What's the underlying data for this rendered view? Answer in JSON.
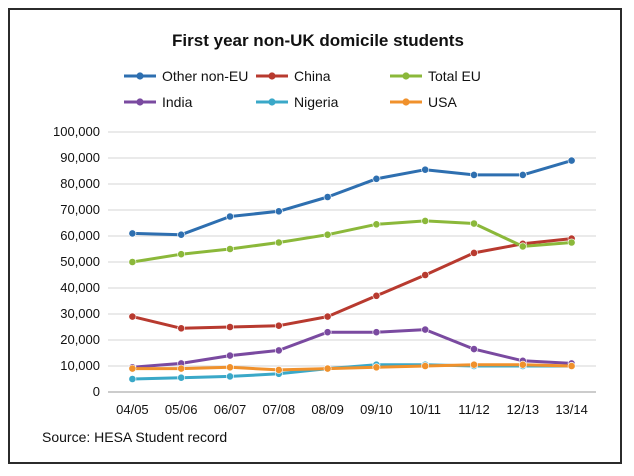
{
  "chart_data": {
    "type": "line",
    "title": "First year non-UK domicile students",
    "xlabel": "",
    "ylabel": "",
    "categories": [
      "04/05",
      "05/06",
      "06/07",
      "07/08",
      "08/09",
      "09/10",
      "10/11",
      "11/12",
      "12/13",
      "13/14"
    ],
    "ylim": [
      0,
      100000
    ],
    "yticks": [
      "0",
      "10,000",
      "20,000",
      "30,000",
      "40,000",
      "50,000",
      "60,000",
      "70,000",
      "80,000",
      "90,000",
      "100,000"
    ],
    "ytick_values": [
      0,
      10000,
      20000,
      30000,
      40000,
      50000,
      60000,
      70000,
      80000,
      90000,
      100000
    ],
    "grid": true,
    "legend_position": "top",
    "series": [
      {
        "name": "Other non-EU",
        "color": "#2e6fb0",
        "values": [
          61000,
          60500,
          67500,
          69500,
          75000,
          82000,
          85500,
          83500,
          83500,
          89000
        ]
      },
      {
        "name": "China",
        "color": "#b83a2f",
        "values": [
          29000,
          24500,
          25000,
          25500,
          29000,
          37000,
          45000,
          53500,
          57000,
          59000
        ]
      },
      {
        "name": "Total EU",
        "color": "#8bb83a",
        "values": [
          50000,
          53000,
          55000,
          57500,
          60500,
          64500,
          65800,
          64800,
          56000,
          57500
        ]
      },
      {
        "name": "India",
        "color": "#7a4aa0",
        "values": [
          9500,
          11000,
          14000,
          16000,
          23000,
          23000,
          24000,
          16500,
          12000,
          11000
        ]
      },
      {
        "name": "Nigeria",
        "color": "#3aa8c8",
        "values": [
          5000,
          5500,
          6000,
          7000,
          9000,
          10500,
          10500,
          10000,
          10000,
          10000
        ]
      },
      {
        "name": "USA",
        "color": "#f0912c",
        "values": [
          9000,
          9000,
          9500,
          8500,
          9000,
          9500,
          10000,
          10500,
          10500,
          10000
        ]
      }
    ],
    "source": "Source: HESA Student record"
  }
}
